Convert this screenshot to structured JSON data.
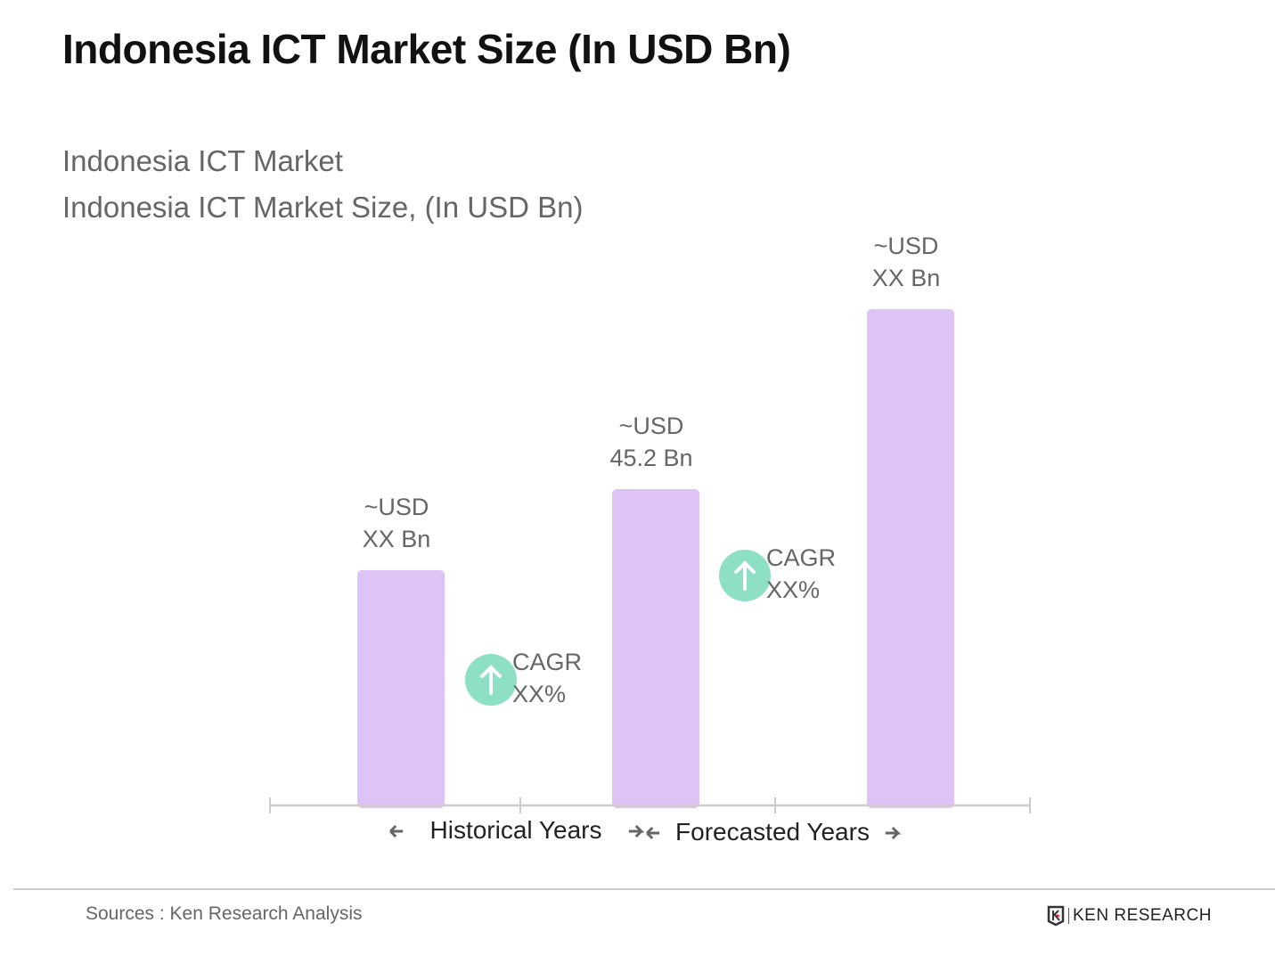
{
  "header": {
    "title": "Indonesia ICT Market Size (In USD Bn)",
    "subtitle_1": "Indonesia ICT Market",
    "subtitle_2": "Indonesia ICT Market Size, (In USD Bn)"
  },
  "chart_data": {
    "type": "bar",
    "categories": [
      "",
      "",
      ""
    ],
    "values": [
      33.6,
      45.2,
      71.0
    ],
    "data_labels": [
      [
        "~USD",
        "XX Bn"
      ],
      [
        "~USD",
        "45.2 Bn"
      ],
      [
        "~USD",
        "XX Bn"
      ]
    ],
    "bar_color": "#dec3f7",
    "cagr_annotations": [
      {
        "line1": "CAGR",
        "line2": "XX%",
        "icon": "arrow-up-circle-icon",
        "color": "#8de0c4"
      },
      {
        "line1": "CAGR",
        "line2": "XX%",
        "icon": "arrow-up-circle-icon",
        "color": "#8de0c4"
      }
    ],
    "period_labels": [
      "Historical Years",
      "Forecasted Years"
    ],
    "ylim": [
      0,
      80
    ],
    "grid": false,
    "axes_visible": false
  },
  "footer": {
    "source": "Sources : Ken Research Analysis",
    "logo_text": "KEN RESEARCH"
  }
}
